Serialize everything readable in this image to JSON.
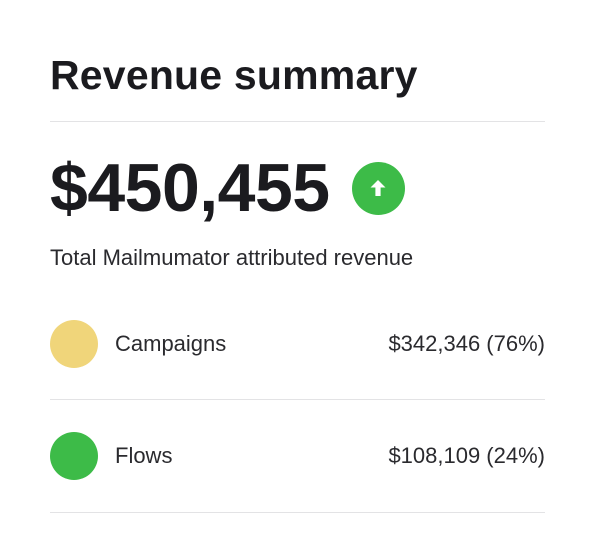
{
  "colors": {
    "trend_badge": "#3dbb48",
    "campaigns": "#f0d57a",
    "flows": "#3dbb48"
  },
  "card": {
    "title": "Revenue summary",
    "total_value": "$450,455",
    "trend_icon": "arrow-up-icon",
    "subtitle": "Total Mailmumator attributed revenue",
    "rows": [
      {
        "label": "Campaigns",
        "value": "$342,346 (76%)",
        "color": "#f0d57a"
      },
      {
        "label": "Flows",
        "value": "$108,109 (24%)",
        "color": "#3dbb48"
      }
    ]
  }
}
